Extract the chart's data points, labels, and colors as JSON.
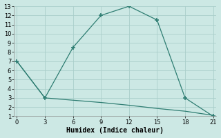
{
  "xlabel": "Humidex (Indice chaleur)",
  "background_color": "#cce8e4",
  "grid_color": "#aaceca",
  "line_color": "#2e7d72",
  "line1_x": [
    0,
    3,
    6,
    9,
    12,
    15,
    18,
    21
  ],
  "line1_y": [
    7,
    3,
    8.5,
    12,
    13,
    11.5,
    3,
    1
  ],
  "line2_x": [
    0,
    3,
    6,
    9,
    12,
    15,
    18,
    21
  ],
  "line2_y": [
    7,
    3,
    2.75,
    2.5,
    2.2,
    1.85,
    1.55,
    1.1
  ],
  "xlim": [
    -0.3,
    21.3
  ],
  "ylim": [
    1,
    13
  ],
  "xticks": [
    0,
    3,
    6,
    9,
    12,
    15,
    18,
    21
  ],
  "yticks": [
    1,
    2,
    3,
    4,
    5,
    6,
    7,
    8,
    9,
    10,
    11,
    12,
    13
  ],
  "marker": "+",
  "markersize": 5,
  "linewidth": 0.9,
  "tick_fontsize": 6,
  "label_fontsize": 7
}
